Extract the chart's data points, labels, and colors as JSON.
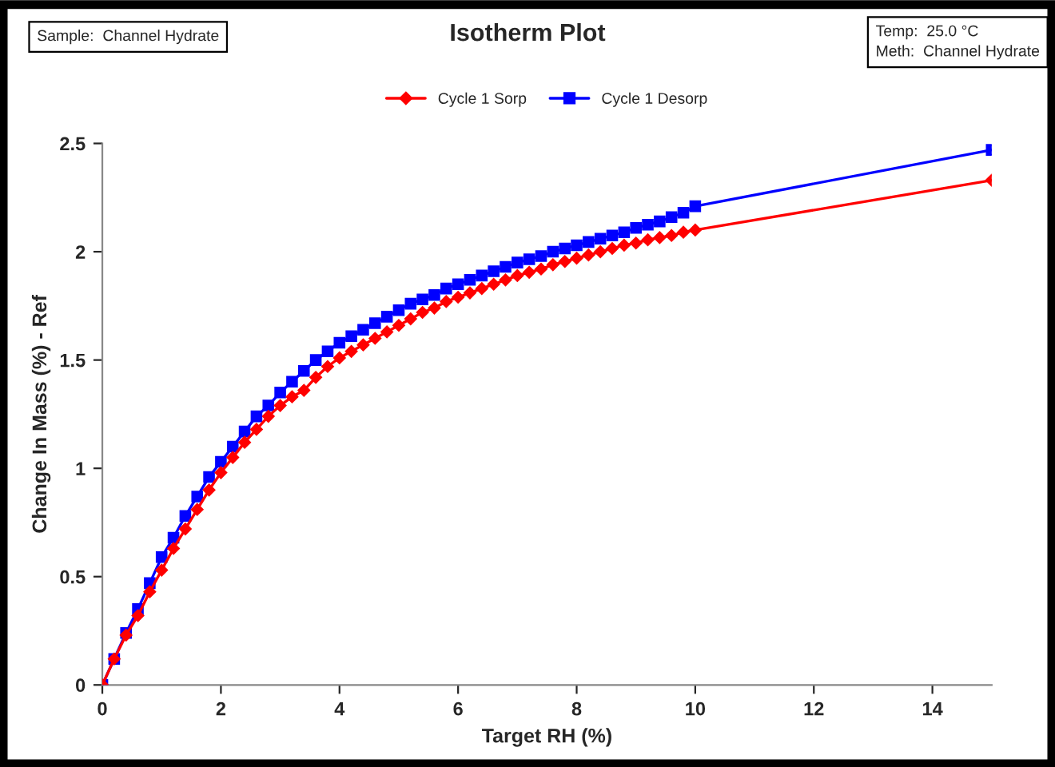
{
  "chart_data": {
    "type": "line",
    "title": "Isotherm Plot",
    "xlabel": "Target RH (%)",
    "ylabel": "Change In Mass (%) - Ref",
    "annotations": [
      "Sample:  Channel Hydrate",
      "Temp:  25.0 °C",
      "Meth:  Channel Hydrate"
    ],
    "x": [
      0,
      0.2,
      0.4,
      0.6,
      0.8,
      1.0,
      1.2,
      1.4,
      1.6,
      1.8,
      2.0,
      2.2,
      2.4,
      2.6,
      2.8,
      3.0,
      3.2,
      3.4,
      3.6,
      3.8,
      4.0,
      4.2,
      4.4,
      4.6,
      4.8,
      5.0,
      5.2,
      5.4,
      5.6,
      5.8,
      6.0,
      6.2,
      6.4,
      6.6,
      6.8,
      7.0,
      7.2,
      7.4,
      7.6,
      7.8,
      8.0,
      8.2,
      8.4,
      8.6,
      8.8,
      9.0,
      9.2,
      9.4,
      9.6,
      9.8,
      10.0,
      15
    ],
    "series": [
      {
        "name": "Cycle 1 Sorp",
        "color": "#ff0000",
        "marker": "diamond",
        "values": [
          0,
          0.12,
          0.23,
          0.32,
          0.43,
          0.53,
          0.63,
          0.72,
          0.81,
          0.9,
          0.98,
          1.05,
          1.12,
          1.18,
          1.24,
          1.29,
          1.33,
          1.36,
          1.42,
          1.47,
          1.51,
          1.54,
          1.57,
          1.6,
          1.63,
          1.66,
          1.69,
          1.72,
          1.74,
          1.77,
          1.79,
          1.81,
          1.83,
          1.85,
          1.87,
          1.89,
          1.905,
          1.92,
          1.94,
          1.955,
          1.97,
          1.985,
          2.0,
          2.015,
          2.03,
          2.04,
          2.055,
          2.065,
          2.075,
          2.09,
          2.1,
          2.33
        ]
      },
      {
        "name": "Cycle 1 Desorp",
        "color": "#0000ff",
        "marker": "square",
        "values": [
          0,
          0.12,
          0.24,
          0.35,
          0.47,
          0.59,
          0.68,
          0.78,
          0.87,
          0.96,
          1.03,
          1.1,
          1.17,
          1.24,
          1.29,
          1.35,
          1.4,
          1.45,
          1.5,
          1.54,
          1.58,
          1.61,
          1.64,
          1.67,
          1.7,
          1.73,
          1.76,
          1.78,
          1.8,
          1.83,
          1.85,
          1.87,
          1.89,
          1.91,
          1.93,
          1.95,
          1.965,
          1.98,
          2.0,
          2.015,
          2.03,
          2.045,
          2.06,
          2.075,
          2.09,
          2.11,
          2.125,
          2.14,
          2.16,
          2.18,
          2.21,
          2.47
        ]
      }
    ],
    "xlim": [
      0,
      15
    ],
    "xticks": [
      0,
      2,
      4,
      6,
      8,
      10,
      12,
      14
    ],
    "ylim": [
      0,
      2.5
    ],
    "yticks": [
      0,
      0.5,
      1,
      1.5,
      2,
      2.5
    ],
    "grid": false,
    "legend": "top",
    "line_style": "solid"
  }
}
